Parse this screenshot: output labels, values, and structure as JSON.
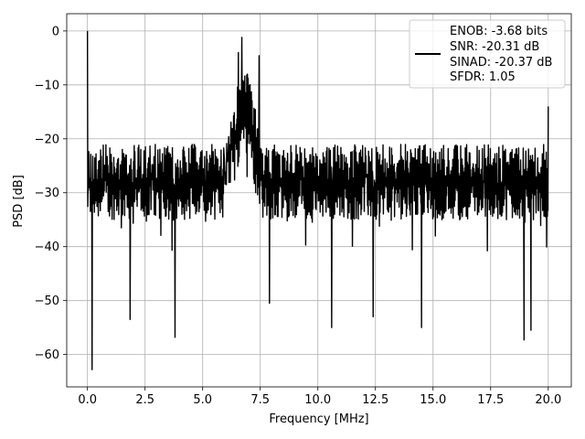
{
  "chart_data": {
    "type": "line",
    "title": "",
    "xlabel": "Frequency [MHz]",
    "ylabel": "PSD [dB]",
    "xlim": [
      -0.9,
      21.0
    ],
    "ylim": [
      -66,
      3.2
    ],
    "xticks": [
      0.0,
      2.5,
      5.0,
      7.5,
      10.0,
      12.5,
      15.0,
      17.5,
      20.0
    ],
    "xtick_labels": [
      "0.0",
      "2.5",
      "5.0",
      "7.5",
      "10.0",
      "12.5",
      "15.0",
      "17.5",
      "20.0"
    ],
    "yticks": [
      0,
      -10,
      -20,
      -30,
      -40,
      -50,
      -60
    ],
    "ytick_labels": [
      "0",
      "−10",
      "−20",
      "−30",
      "−40",
      "−50",
      "−60"
    ],
    "grid": true,
    "legend_position": "top-right",
    "legend": [
      "ENOB: -3.68 bits",
      "SNR: -20.31 dB",
      "SINAD: -20.37 dB",
      "SFDR: 1.05"
    ],
    "line_color": "#000000",
    "series": [
      {
        "x_range": [
          0.0,
          20.0
        ],
        "noise_upper_envelope_db": -20,
        "noise_lower_envelope_db": -45,
        "notable_points": [
          {
            "x": 0.0,
            "y": 0.0
          },
          {
            "x": 0.2,
            "y": -62.8
          },
          {
            "x": 1.85,
            "y": -53.5
          },
          {
            "x": 3.8,
            "y": -56.8
          },
          {
            "x": 6.7,
            "y": -1.2
          },
          {
            "x": 6.55,
            "y": -4.0
          },
          {
            "x": 7.45,
            "y": -4.6
          },
          {
            "x": 7.9,
            "y": -50.5
          },
          {
            "x": 10.6,
            "y": -55.0
          },
          {
            "x": 12.4,
            "y": -53.0
          },
          {
            "x": 14.5,
            "y": -55.0
          },
          {
            "x": 18.95,
            "y": -57.3
          },
          {
            "x": 19.25,
            "y": -55.5
          },
          {
            "x": 20.0,
            "y": -14.0
          }
        ]
      }
    ]
  }
}
